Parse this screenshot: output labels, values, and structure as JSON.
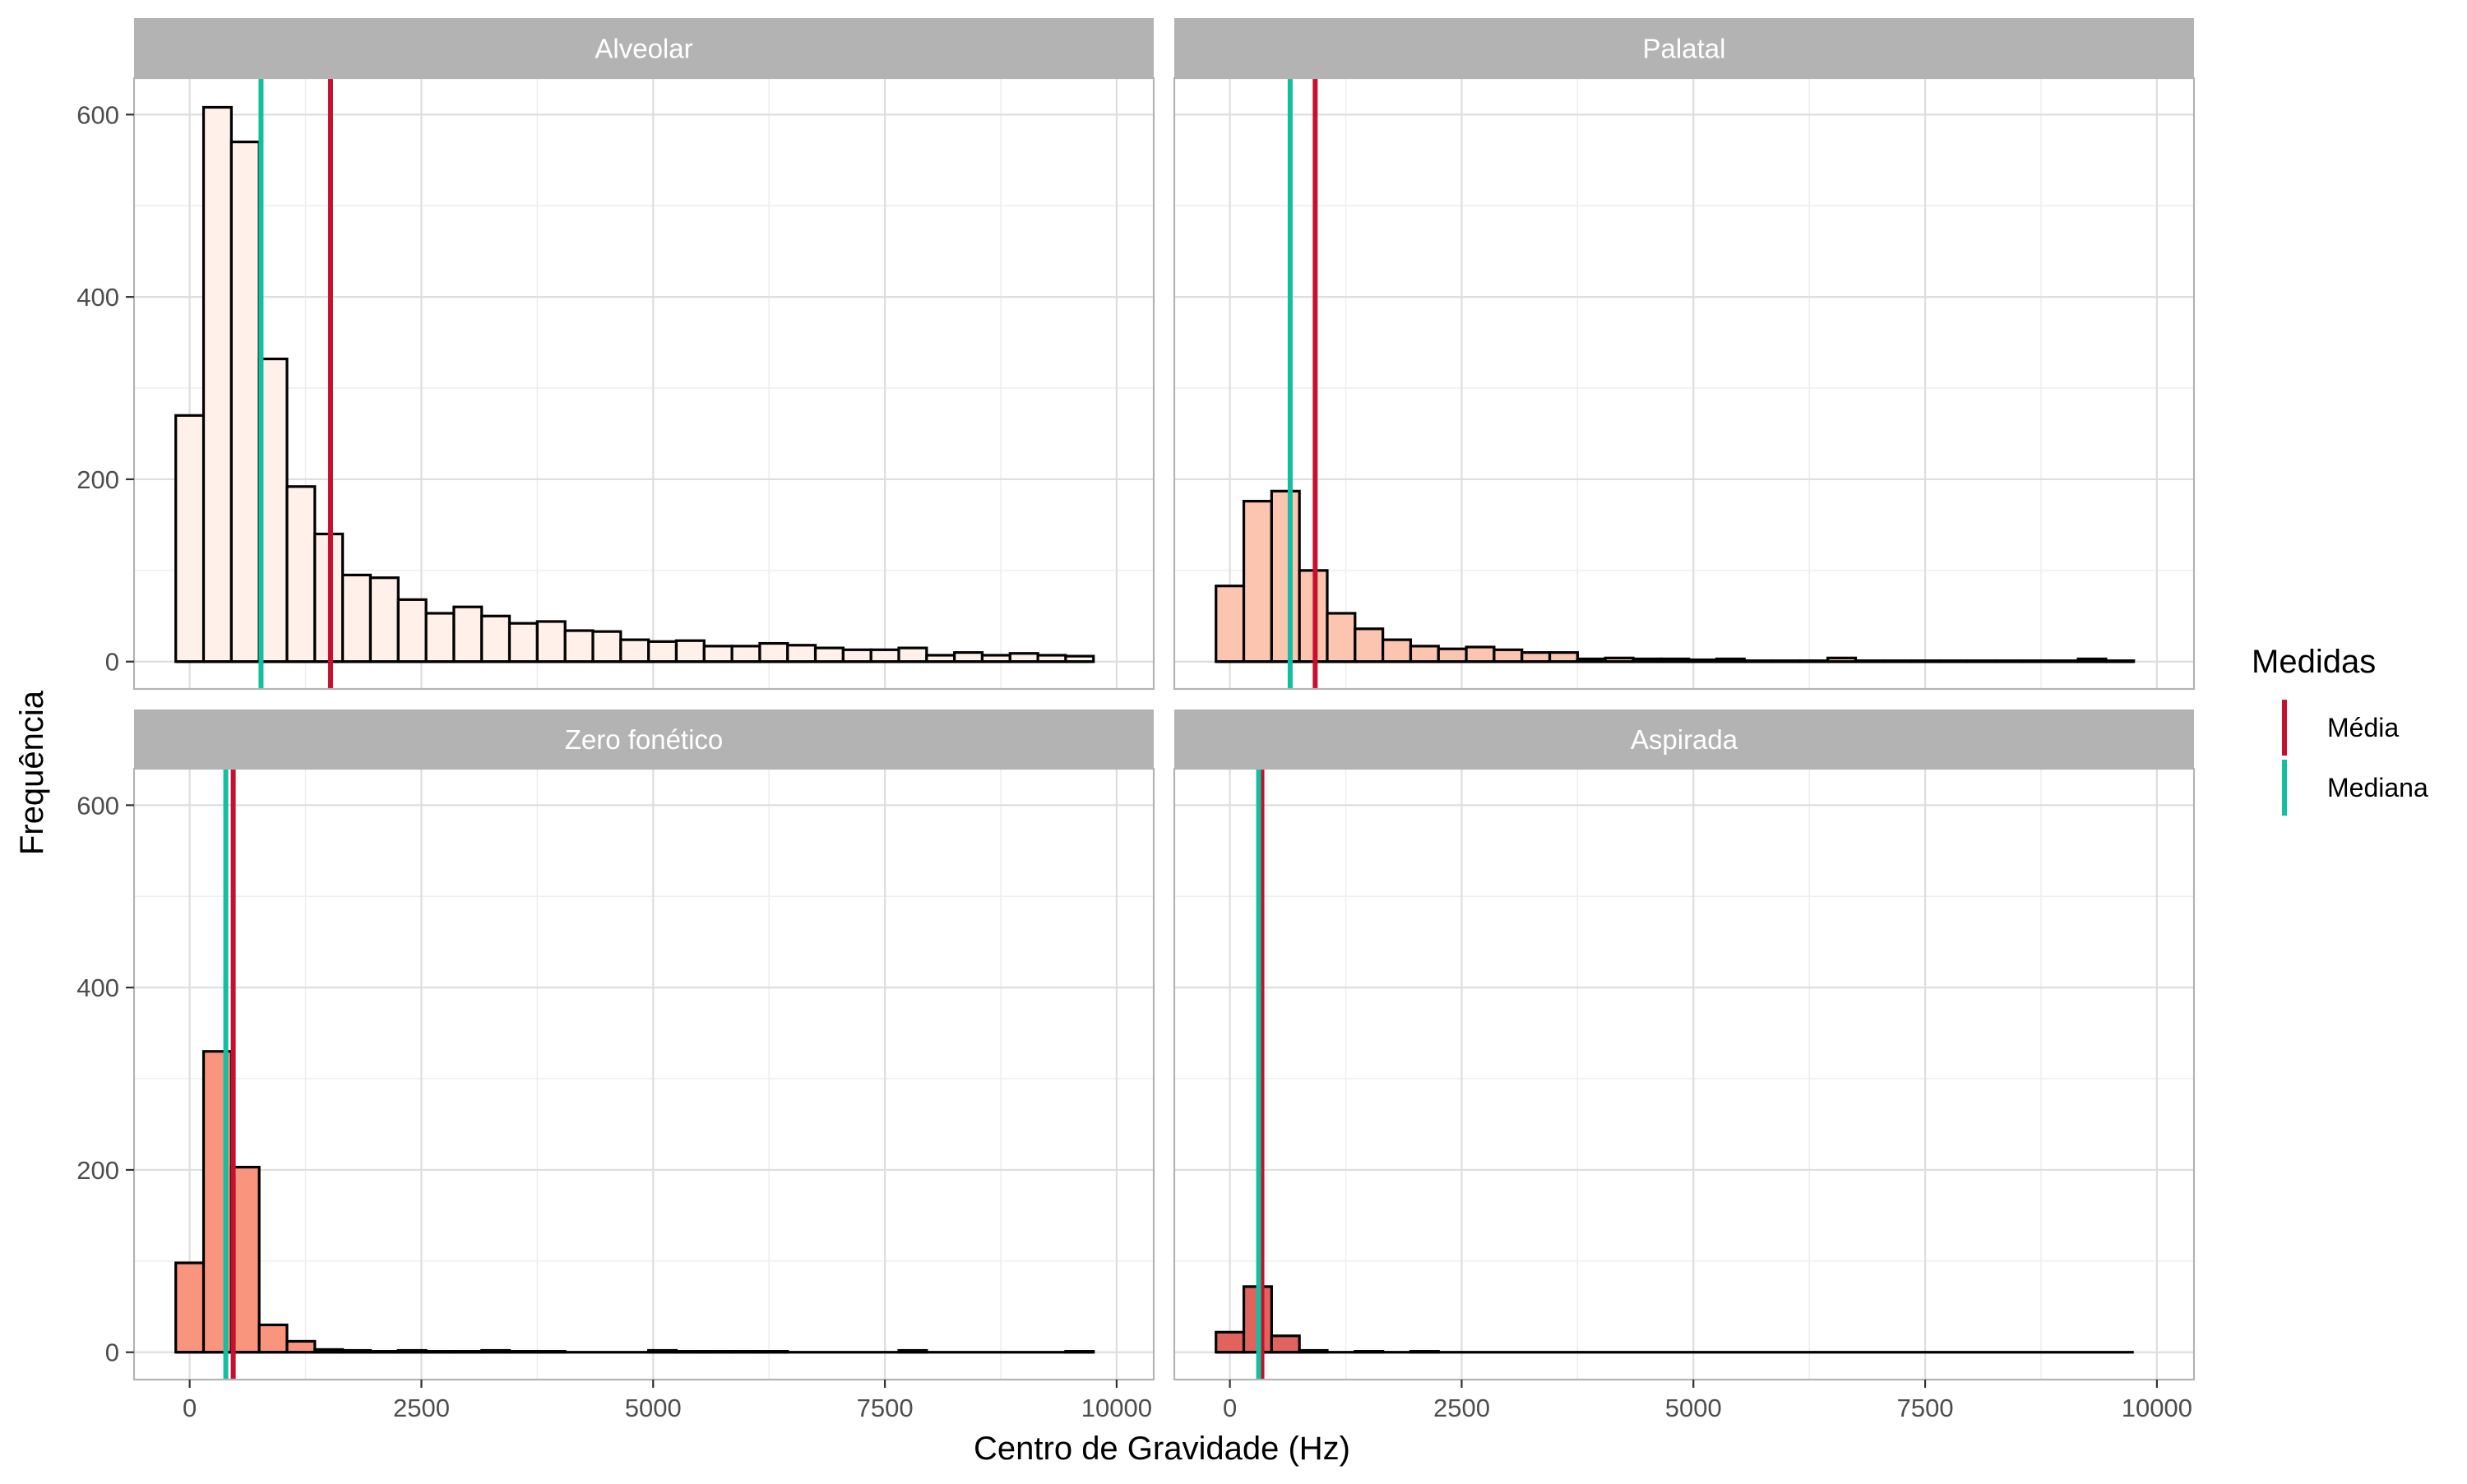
{
  "chart_data": {
    "type": "bar",
    "subtype": "faceted-histogram",
    "xlabel": "Centro de Gravidade (Hz)",
    "ylabel": "Frequência",
    "xlim": [
      -600,
      10400
    ],
    "ylim": [
      -30,
      640
    ],
    "x_ticks": [
      0,
      2500,
      5000,
      7500,
      10000
    ],
    "x_tick_labels": [
      "0",
      "2500",
      "5000",
      "7500",
      "10000"
    ],
    "y_ticks": [
      0,
      200,
      400,
      600
    ],
    "y_tick_labels": [
      "0",
      "200",
      "400",
      "600"
    ],
    "bin_start": -150,
    "bin_width": 300,
    "grid": true,
    "legend": {
      "title": "Medidas",
      "position": "right",
      "items": [
        {
          "label": "Média",
          "color": "#C8102E"
        },
        {
          "label": "Mediana",
          "color": "#12BFA0"
        }
      ]
    },
    "facets": [
      {
        "name": "Alveolar",
        "fill": "#FFF0EA",
        "mean": 1520,
        "median": 770,
        "counts": [
          270,
          608,
          570,
          332,
          192,
          140,
          95,
          92,
          68,
          53,
          60,
          50,
          42,
          44,
          34,
          33,
          24,
          22,
          23,
          17,
          17,
          20,
          18,
          15,
          13,
          13,
          15,
          7,
          10,
          7,
          9,
          7,
          6
        ]
      },
      {
        "name": "Palatal",
        "fill": "#FCC5AF",
        "mean": 920,
        "median": 650,
        "counts": [
          83,
          176,
          187,
          100,
          53,
          36,
          24,
          17,
          14,
          16,
          13,
          10,
          10,
          3,
          4,
          3,
          3,
          2,
          3,
          1,
          1,
          1,
          4,
          1,
          1,
          1,
          1,
          1,
          1,
          1,
          1,
          3,
          1
        ]
      },
      {
        "name": "Zero fonético",
        "fill": "#F9947D",
        "mean": 470,
        "median": 390,
        "counts": [
          98,
          330,
          203,
          30,
          12,
          3,
          2,
          1,
          2,
          1,
          1,
          2,
          1,
          1,
          0,
          0,
          0,
          2,
          1,
          1,
          1,
          1,
          0,
          0,
          0,
          0,
          2,
          0,
          0,
          0,
          0,
          0,
          1
        ]
      },
      {
        "name": "Aspirada",
        "fill": "#E0635E",
        "mean": 345,
        "median": 310,
        "counts": [
          22,
          72,
          18,
          2,
          0,
          1,
          0,
          1,
          0,
          0,
          0,
          0,
          0,
          0,
          0,
          0,
          0,
          0,
          0,
          0,
          0,
          0,
          0,
          0,
          0,
          0,
          0,
          0,
          0,
          0,
          0,
          0,
          0
        ]
      }
    ]
  }
}
